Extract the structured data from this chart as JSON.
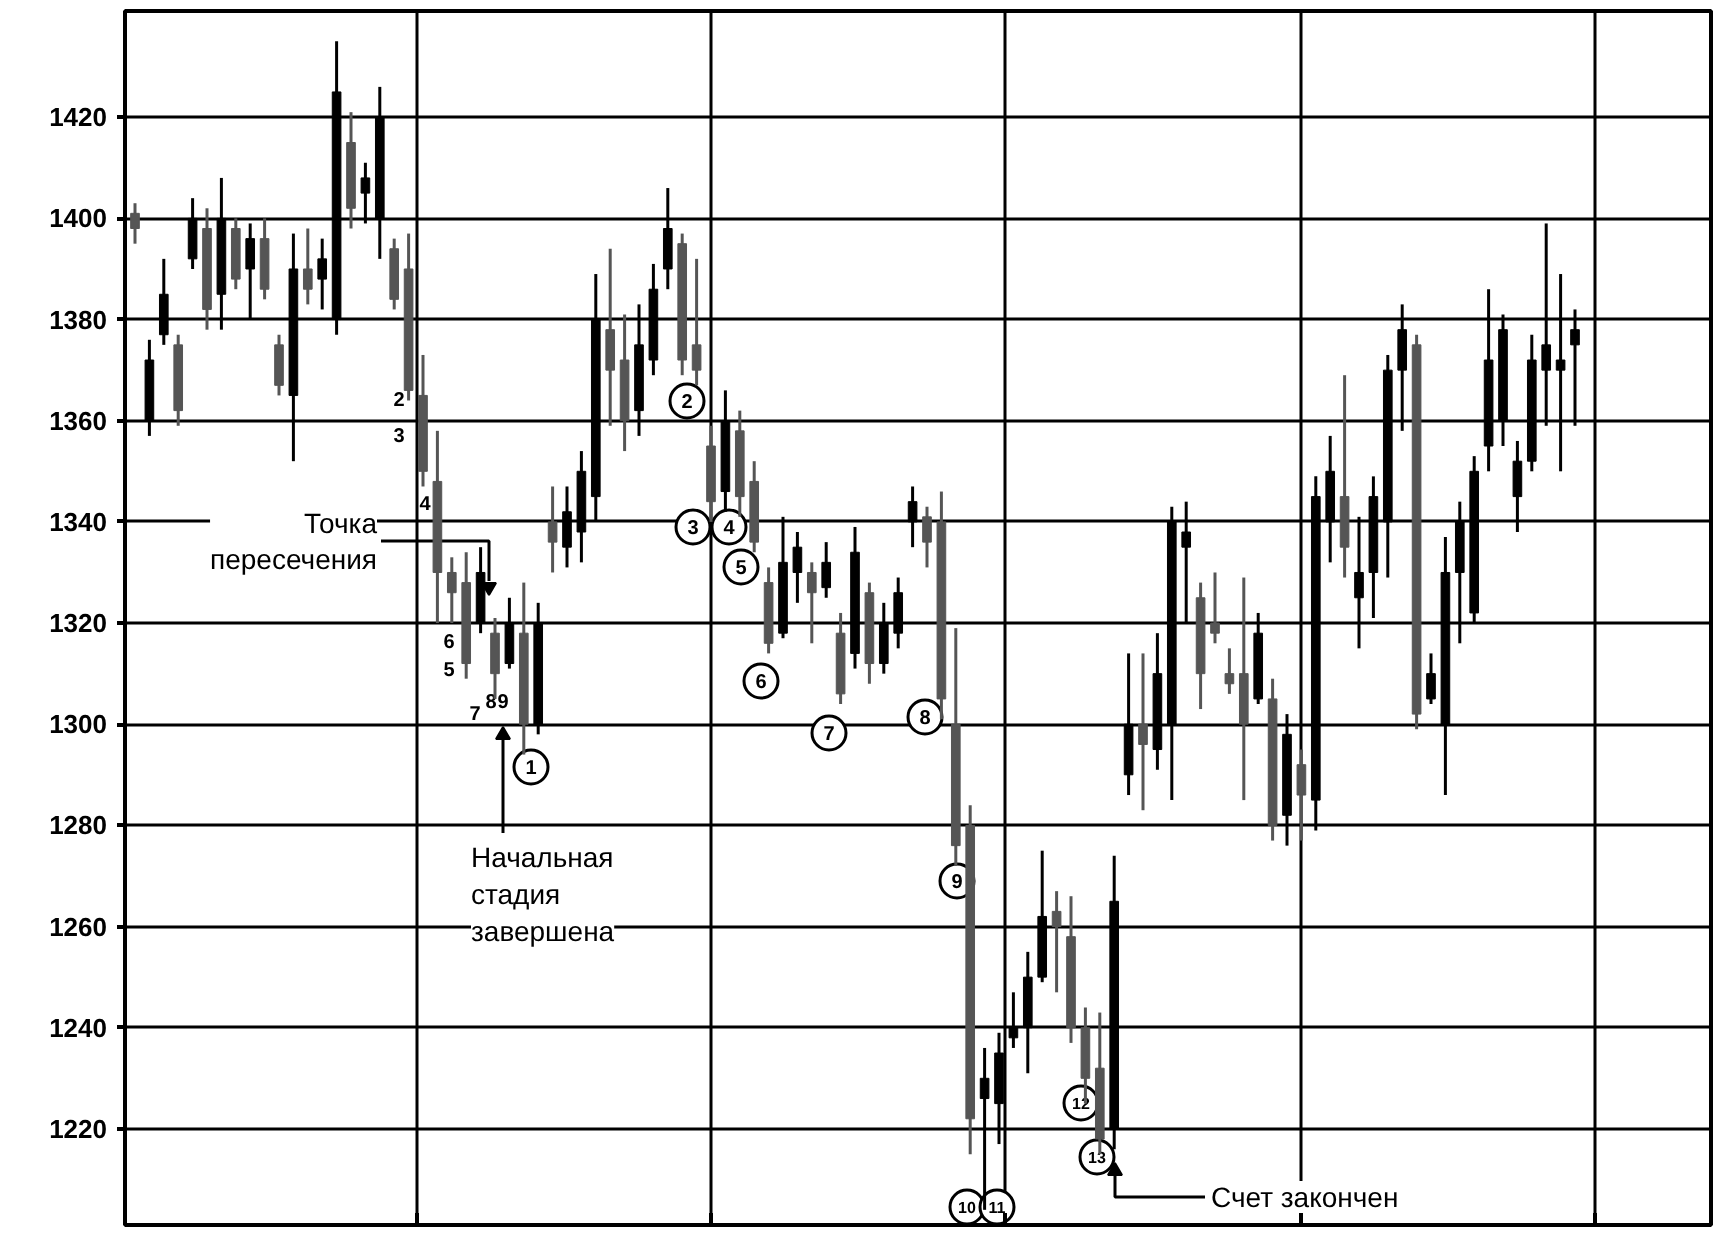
{
  "chart_data": {
    "type": "candlestick",
    "colors": [
      "#555555",
      "#000000",
      "#000000",
      "#555555",
      "#000000",
      "#555555",
      "#000000",
      "#555555",
      "#000000",
      "#555555",
      "#555555",
      "#000000",
      "#555555",
      "#000000",
      "#000000",
      "#555555",
      "#000000",
      "#000000",
      "#555555",
      "#555555",
      "#555555",
      "#555555",
      "#555555",
      "#555555",
      "#000000",
      "#555555",
      "#000000",
      "#555555",
      "#000000",
      "#555555",
      "#000000",
      "#000000",
      "#000000",
      "#555555",
      "#555555",
      "#000000",
      "#000000",
      "#000000",
      "#555555",
      "#555555",
      "#555555",
      "#000000",
      "#555555",
      "#555555",
      "#555555",
      "#000000",
      "#000000",
      "#555555",
      "#000000",
      "#555555",
      "#000000",
      "#555555",
      "#000000",
      "#000000",
      "#000000",
      "#555555",
      "#555555",
      "#555555",
      "#555555",
      "#000000",
      "#000000",
      "#000000",
      "#000000",
      "#000000",
      "#555555",
      "#555555",
      "#555555",
      "#555555",
      "#000000",
      "#000000",
      "#555555",
      "#000000",
      "#000000",
      "#000000",
      "#555555",
      "#555555",
      "#555555",
      "#555555",
      "#000000",
      "#555555",
      "#000000",
      "#555555",
      "#000000",
      "#000000",
      "#555555",
      "#000000",
      "#000000",
      "#000000",
      "#000000",
      "#555555",
      "#000000",
      "#000000",
      "#000000",
      "#000000",
      "#000000",
      "#000000",
      "#000000",
      "#000000",
      "#000000",
      "#000000",
      "#000000"
    ],
    "categories": [
      null,
      null,
      null,
      null,
      null,
      null,
      null,
      null,
      null,
      null,
      null,
      null,
      null,
      null,
      null,
      null,
      null,
      null,
      null,
      null,
      null,
      null,
      null,
      null,
      null,
      null,
      null,
      null,
      null,
      null,
      null,
      null,
      null,
      null,
      null,
      null,
      null,
      null,
      null,
      null,
      null,
      null,
      null,
      null,
      null,
      null,
      null,
      null,
      null,
      null,
      null,
      null,
      null,
      null,
      null,
      null,
      null,
      null,
      null,
      null,
      null,
      null,
      null,
      null,
      null,
      null,
      null,
      null,
      null,
      null,
      null,
      null,
      null,
      null,
      null,
      null,
      null,
      null,
      null,
      null,
      null,
      null,
      null,
      null,
      null,
      null,
      null,
      null,
      null,
      null,
      null,
      null,
      null,
      null,
      null,
      null,
      null,
      null,
      null,
      null,
      null
    ],
    "ohlc": [
      [
        1401,
        1403,
        1395,
        1398
      ],
      [
        1360,
        1376,
        1357,
        1372
      ],
      [
        1377,
        1392,
        1375,
        1385
      ],
      [
        1375,
        1377,
        1359,
        1362
      ],
      [
        1392,
        1404,
        1390,
        1400
      ],
      [
        1398,
        1402,
        1378,
        1382
      ],
      [
        1385,
        1408,
        1378,
        1400
      ],
      [
        1398,
        1400,
        1386,
        1388
      ],
      [
        1390,
        1399,
        1380,
        1396
      ],
      [
        1396,
        1400,
        1384,
        1386
      ],
      [
        1375,
        1377,
        1365,
        1367
      ],
      [
        1365,
        1397,
        1352,
        1390
      ],
      [
        1390,
        1398,
        1383,
        1386
      ],
      [
        1388,
        1396,
        1382,
        1392
      ],
      [
        1380,
        1435,
        1377,
        1425
      ],
      [
        1415,
        1421,
        1398,
        1402
      ],
      [
        1405,
        1411,
        1399,
        1408
      ],
      [
        1400,
        1426,
        1392,
        1420
      ],
      [
        1394,
        1396,
        1382,
        1384
      ],
      [
        1390,
        1397,
        1364,
        1366
      ],
      [
        1365,
        1373,
        1347,
        1350
      ],
      [
        1348,
        1358,
        1320,
        1330
      ],
      [
        1330,
        1333,
        1320,
        1326
      ],
      [
        1328,
        1334,
        1309,
        1312
      ],
      [
        1320,
        1335,
        1318,
        1330
      ],
      [
        1318,
        1321,
        1305,
        1310
      ],
      [
        1312,
        1325,
        1311,
        1320
      ],
      [
        1318,
        1328,
        1294,
        1300
      ],
      [
        1300,
        1324,
        1298,
        1320
      ],
      [
        1340,
        1347,
        1330,
        1336
      ],
      [
        1335,
        1347,
        1331,
        1342
      ],
      [
        1338,
        1354,
        1332,
        1350
      ],
      [
        1345,
        1389,
        1340,
        1380
      ],
      [
        1378,
        1394,
        1359,
        1370
      ],
      [
        1372,
        1381,
        1354,
        1360
      ],
      [
        1362,
        1383,
        1357,
        1375
      ],
      [
        1372,
        1391,
        1369,
        1386
      ],
      [
        1390,
        1406,
        1386,
        1398
      ],
      [
        1395,
        1397,
        1369,
        1372
      ],
      [
        1375,
        1392,
        1367,
        1370
      ],
      [
        1355,
        1359,
        1340,
        1344
      ],
      [
        1346,
        1366,
        1342,
        1360
      ],
      [
        1358,
        1362,
        1341,
        1345
      ],
      [
        1348,
        1352,
        1334,
        1336
      ],
      [
        1328,
        1331,
        1314,
        1316
      ],
      [
        1318,
        1341,
        1317,
        1332
      ],
      [
        1330,
        1338,
        1324,
        1335
      ],
      [
        1330,
        1332,
        1316,
        1326
      ],
      [
        1327,
        1336,
        1325,
        1332
      ],
      [
        1318,
        1322,
        1304,
        1306
      ],
      [
        1314,
        1339,
        1311,
        1334
      ],
      [
        1326,
        1328,
        1308,
        1312
      ],
      [
        1312,
        1324,
        1310,
        1320
      ],
      [
        1318,
        1329,
        1315,
        1326
      ],
      [
        1340,
        1347,
        1335,
        1344
      ],
      [
        1341,
        1343,
        1331,
        1336
      ],
      [
        1340,
        1346,
        1301,
        1305
      ],
      [
        1300,
        1319,
        1272,
        1276
      ],
      [
        1280,
        1284,
        1215,
        1222
      ],
      [
        1226,
        1236,
        1204,
        1230
      ],
      [
        1225,
        1239,
        1217,
        1235
      ],
      [
        1238,
        1247,
        1236,
        1240
      ],
      [
        1240,
        1255,
        1231,
        1250
      ],
      [
        1250,
        1275,
        1249,
        1262
      ],
      [
        1263,
        1267,
        1247,
        1260
      ],
      [
        1258,
        1266,
        1237,
        1240
      ],
      [
        1240,
        1244,
        1225,
        1230
      ],
      [
        1232,
        1243,
        1215,
        1218
      ],
      [
        1220,
        1274,
        1216,
        1265
      ],
      [
        1290,
        1314,
        1286,
        1300
      ],
      [
        1300,
        1314,
        1283,
        1296
      ],
      [
        1295,
        1318,
        1291,
        1310
      ],
      [
        1300,
        1343,
        1285,
        1340
      ],
      [
        1335,
        1344,
        1320,
        1338
      ],
      [
        1325,
        1328,
        1303,
        1310
      ],
      [
        1320,
        1330,
        1316,
        1318
      ],
      [
        1310,
        1315,
        1306,
        1308
      ],
      [
        1310,
        1329,
        1285,
        1300
      ],
      [
        1305,
        1322,
        1304,
        1318
      ],
      [
        1305,
        1309,
        1277,
        1280
      ],
      [
        1282,
        1302,
        1276,
        1298
      ],
      [
        1292,
        1295,
        1277,
        1286
      ],
      [
        1285,
        1349,
        1279,
        1345
      ],
      [
        1340,
        1357,
        1332,
        1350
      ],
      [
        1345,
        1369,
        1329,
        1335
      ],
      [
        1325,
        1341,
        1315,
        1330
      ],
      [
        1330,
        1349,
        1321,
        1345
      ],
      [
        1340,
        1373,
        1329,
        1370
      ],
      [
        1370,
        1383,
        1358,
        1378
      ],
      [
        1375,
        1377,
        1299,
        1302
      ],
      [
        1305,
        1314,
        1304,
        1310
      ],
      [
        1300,
        1337,
        1286,
        1330
      ],
      [
        1330,
        1344,
        1316,
        1340
      ],
      [
        1322,
        1353,
        1320,
        1350
      ],
      [
        1355,
        1386,
        1350,
        1372
      ],
      [
        1360,
        1381,
        1355,
        1378
      ],
      [
        1345,
        1356,
        1338,
        1352
      ],
      [
        1352,
        1377,
        1350,
        1372
      ],
      [
        1370,
        1399,
        1359,
        1375
      ],
      [
        1370,
        1389,
        1350,
        1372
      ],
      [
        1375,
        1382,
        1359,
        1378
      ]
    ],
    "ylim": [
      1201,
      1441
    ],
    "yticks": [
      1220,
      1240,
      1260,
      1280,
      1300,
      1320,
      1340,
      1360,
      1380,
      1400,
      1420
    ],
    "tick_labels": "y",
    "grid": true,
    "annotations": [
      "1",
      "2",
      "3",
      "4",
      "5",
      "6",
      "7",
      "8",
      "9",
      "10",
      "11",
      "12",
      "13",
      "2",
      "3",
      "4",
      "5",
      "6",
      "7",
      "8",
      "9",
      "Точка пересечения",
      "Начальная стадия завершена",
      "Счет закончен"
    ]
  }
}
